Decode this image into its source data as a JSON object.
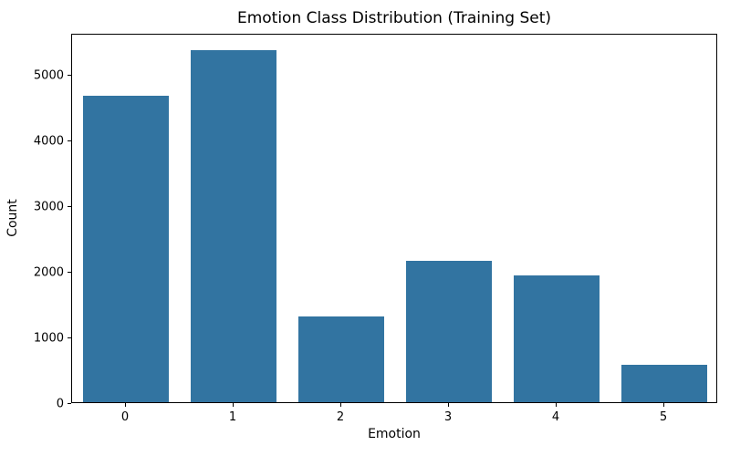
{
  "chart_data": {
    "type": "bar",
    "title": "Emotion Class Distribution (Training Set)",
    "xlabel": "Emotion",
    "ylabel": "Count",
    "categories": [
      "0",
      "1",
      "2",
      "3",
      "4",
      "5"
    ],
    "values": [
      4666,
      5362,
      1304,
      2159,
      1937,
      572
    ],
    "ylim": [
      0,
      5630
    ],
    "yticks": [
      0,
      1000,
      2000,
      3000,
      4000,
      5000
    ],
    "grid": false,
    "legend": "none",
    "bar_color": "#3274a1",
    "bar_width_fraction": 0.8
  }
}
